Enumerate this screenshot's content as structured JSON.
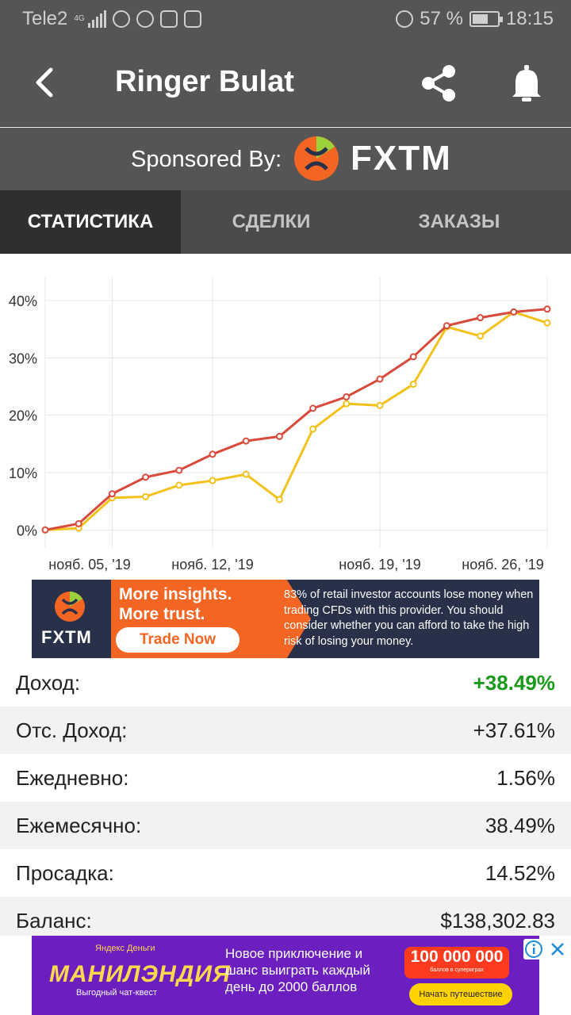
{
  "status_bar": {
    "carrier": "Tele2",
    "network": "4G",
    "battery": "57 %",
    "time": "18:15",
    "icons": [
      "signal-icon",
      "search-icon",
      "whatsapp-icon",
      "upload-icon",
      "instagram-icon",
      "alarm-icon",
      "battery-icon"
    ]
  },
  "header": {
    "title": "Ringer Bulat",
    "icons": [
      "back-arrow-icon",
      "share-icon",
      "bell-icon"
    ]
  },
  "sponsor": {
    "label": "Sponsored By:",
    "brand": "FXTM"
  },
  "tabs": [
    {
      "label": "СТАТИСТИКА",
      "active": true
    },
    {
      "label": "СДЕЛКИ",
      "active": false
    },
    {
      "label": "ЗАКАЗЫ",
      "active": false
    }
  ],
  "chart_data": {
    "type": "line",
    "x_ticks": [
      "нояб. 05, '19",
      "нояб. 12, '19",
      "нояб. 19, '19",
      "нояб. 26, '19"
    ],
    "y_ticks": [
      "0%",
      "10%",
      "20%",
      "30%",
      "40%"
    ],
    "ylim": [
      -3,
      44
    ],
    "grid": true,
    "colors": {
      "series_a": "#d94a3d",
      "series_b": "#f2c21b"
    },
    "series": [
      {
        "values": [
          0,
          1.1,
          6.3,
          9.2,
          10.4,
          13.2,
          15.5,
          16.3,
          21.2,
          23.2,
          26.3,
          30.2,
          35.6,
          37.0,
          38.0,
          38.5
        ]
      },
      {
        "values": [
          0,
          0.3,
          5.6,
          5.8,
          7.8,
          8.6,
          9.7,
          5.3,
          17.6,
          22.0,
          21.7,
          25.4,
          35.4,
          33.8,
          38.0,
          36.1
        ]
      }
    ]
  },
  "ad_fxtm": {
    "brand": "FXTM",
    "headline_1": "More insights.",
    "headline_2": "More trust.",
    "cta": "Trade Now",
    "disclaimer": "83% of retail investor accounts lose money when trading CFDs with this provider. You should consider whether you can afford to take the high risk of losing your money."
  },
  "stats": [
    {
      "label": "Доход:",
      "value": "+38.49%",
      "highlight": true
    },
    {
      "label": "Отс. Доход:",
      "value": "+37.61%"
    },
    {
      "label": "Ежедневно:",
      "value": "1.56%"
    },
    {
      "label": "Ежемесячно:",
      "value": "38.49%"
    },
    {
      "label": "Просадка:",
      "value": "14.52%"
    },
    {
      "label": "Баланс:",
      "value": "$138,302.83"
    }
  ],
  "ad_bottom": {
    "brand_small": "Яндекс Деньги",
    "brand": "МАНИЛЭНДИЯ",
    "brand_sub": "Выгодный чат-квест",
    "message": "Новое приключение и шанс выиграть каждый день до 2000 баллов",
    "prize": "100 000 000",
    "prize_sub": "баллов в супериграх",
    "cta": "Начать путешествие"
  }
}
